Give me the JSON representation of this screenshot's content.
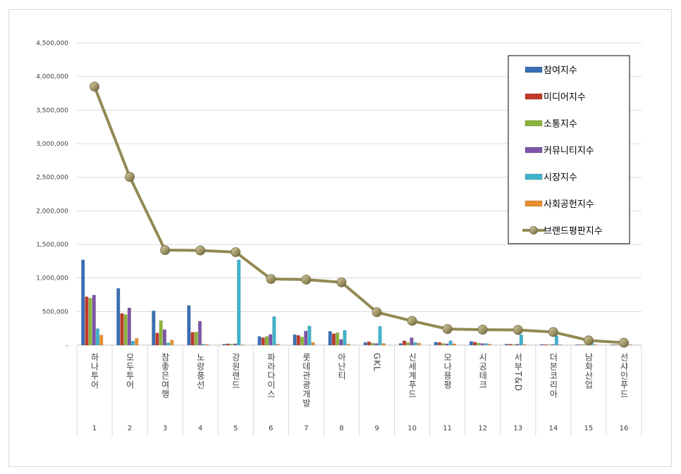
{
  "chart_data": {
    "type": "bar",
    "ylim": [
      0,
      4500000
    ],
    "yticks": [
      "4,500,000",
      "4,000,000",
      "3,500,000",
      "3,000,000",
      "2,500,000",
      "2,000,000",
      "1,500,000",
      "1,000,000",
      "500,000",
      "-"
    ],
    "ytick_values": [
      4500000,
      4000000,
      3500000,
      3000000,
      2500000,
      2000000,
      1500000,
      1000000,
      500000,
      0
    ],
    "grid": true,
    "legend_position": "top-right",
    "categories": [
      "하나투어",
      "모두투어",
      "참좋은여행",
      "노랑풍선",
      "강원랜드",
      "파라다이스",
      "롯데관광개발",
      "아난티",
      "GKL",
      "신세계푸드",
      "모나용평",
      "시공테크",
      "서부T&D",
      "더본코리아",
      "남화산업",
      "선샤인푸드"
    ],
    "ranks": [
      "1",
      "2",
      "3",
      "4",
      "5",
      "6",
      "7",
      "8",
      "9",
      "10",
      "11",
      "12",
      "13",
      "14",
      "15",
      "16"
    ],
    "series": [
      {
        "name": "참여지수",
        "color": "#3A6EB4",
        "values": [
          1270000,
          845000,
          510000,
          590000,
          15000,
          130000,
          155000,
          205000,
          40000,
          25000,
          45000,
          55000,
          15000,
          10000,
          5000,
          3000
        ]
      },
      {
        "name": "미디어지수",
        "color": "#C0392B",
        "values": [
          720000,
          470000,
          180000,
          190000,
          20000,
          110000,
          145000,
          170000,
          50000,
          65000,
          40000,
          45000,
          15000,
          8000,
          4000,
          3000
        ]
      },
      {
        "name": "소통지수",
        "color": "#8DB33C",
        "values": [
          700000,
          455000,
          365000,
          195000,
          15000,
          130000,
          120000,
          185000,
          30000,
          40000,
          25000,
          30000,
          10000,
          5000,
          3000,
          2000
        ]
      },
      {
        "name": "커뮤니티지수",
        "color": "#7D55A8",
        "values": [
          745000,
          555000,
          230000,
          355000,
          20000,
          160000,
          210000,
          85000,
          25000,
          110000,
          20000,
          25000,
          15000,
          10000,
          5000,
          2000
        ]
      },
      {
        "name": "시장지수",
        "color": "#3FB3CC",
        "values": [
          245000,
          60000,
          35000,
          15000,
          1270000,
          425000,
          285000,
          220000,
          280000,
          40000,
          65000,
          25000,
          155000,
          140000,
          60000,
          30000
        ]
      },
      {
        "name": "사회공헌지수",
        "color": "#E88F2E",
        "values": [
          150000,
          100000,
          75000,
          10000,
          5000,
          15000,
          40000,
          15000,
          25000,
          30000,
          20000,
          15000,
          10000,
          5000,
          5000,
          3000
        ]
      }
    ],
    "line": {
      "name": "브랜드평판지수",
      "color": "#938953",
      "marker_color": "#9C9060",
      "values": [
        3850000,
        2505000,
        1415000,
        1410000,
        1385000,
        985000,
        975000,
        935000,
        490000,
        360000,
        240000,
        230000,
        225000,
        195000,
        70000,
        35000
      ]
    }
  }
}
